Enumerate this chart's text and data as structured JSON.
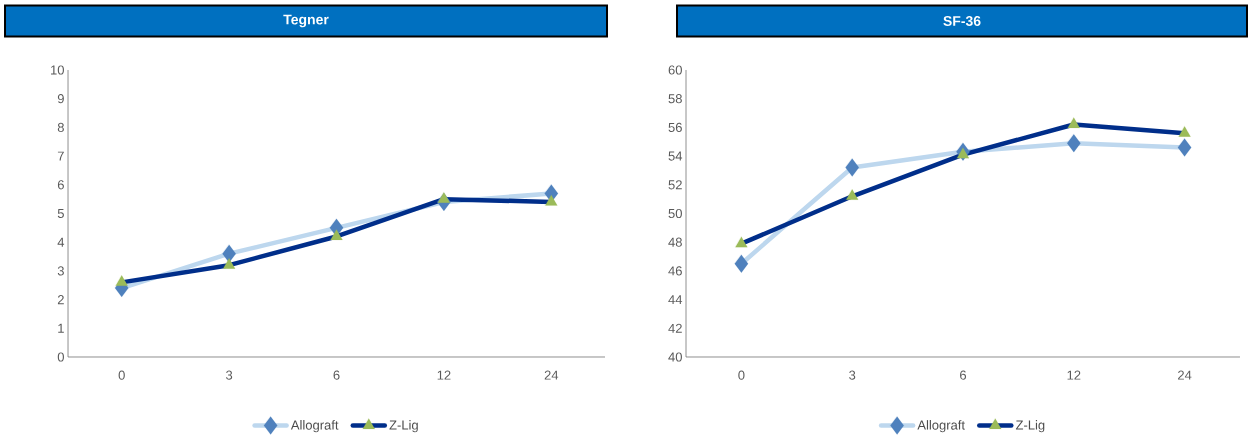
{
  "chart_data": [
    {
      "type": "line",
      "title": "Tegner",
      "categories": [
        "0",
        "3",
        "6",
        "12",
        "24"
      ],
      "ylim": [
        0,
        10
      ],
      "yticks": [
        0,
        1,
        2,
        3,
        4,
        5,
        6,
        7,
        8,
        9,
        10
      ],
      "legend": "bottom",
      "series": [
        {
          "name": "Allograft",
          "color": "#bdd7ee",
          "marker": "diamond",
          "values": [
            2.4,
            3.6,
            4.5,
            5.4,
            5.7
          ]
        },
        {
          "name": "Z-Lig",
          "color": "#002e8a",
          "marker": "triangle",
          "values": [
            2.6,
            3.2,
            4.2,
            5.5,
            5.4
          ]
        }
      ]
    },
    {
      "type": "line",
      "title": "SF-36",
      "categories": [
        "0",
        "3",
        "6",
        "12",
        "24"
      ],
      "ylim": [
        40,
        60
      ],
      "yticks": [
        40,
        42,
        44,
        46,
        48,
        50,
        52,
        54,
        56,
        58,
        60
      ],
      "legend": "bottom",
      "series": [
        {
          "name": "Allograft",
          "color": "#bdd7ee",
          "marker": "diamond",
          "values": [
            46.5,
            53.2,
            54.3,
            54.9,
            54.6
          ]
        },
        {
          "name": "Z-Lig",
          "color": "#002e8a",
          "marker": "triangle",
          "values": [
            47.9,
            51.2,
            54.1,
            56.2,
            55.6
          ]
        }
      ]
    }
  ]
}
